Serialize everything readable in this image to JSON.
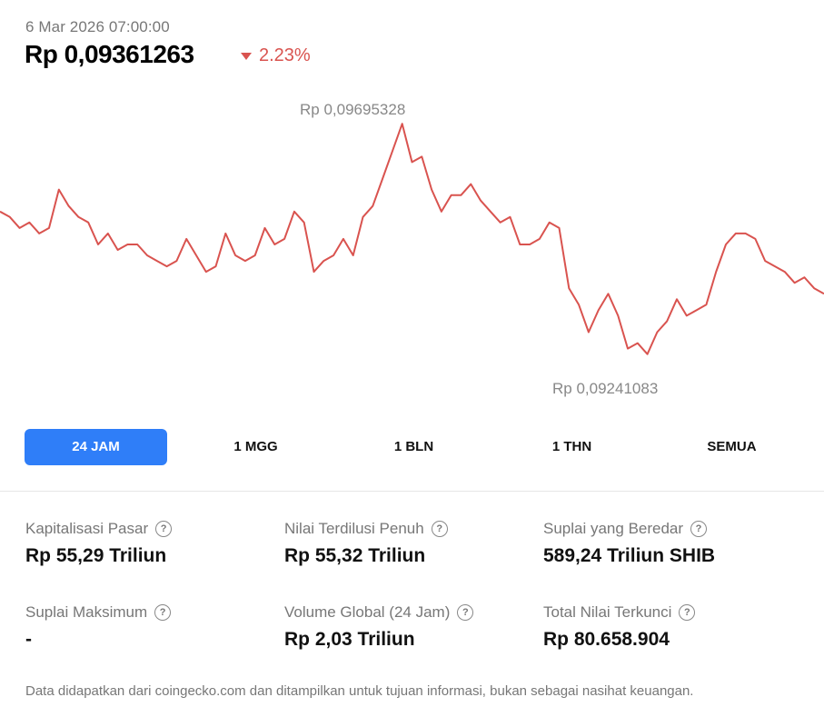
{
  "header": {
    "timestamp": "6 Mar 2026 07:00:00",
    "price": "Rp 0,09361263",
    "change": "2.23%",
    "change_color": "#d9534f"
  },
  "chart_data": {
    "type": "line",
    "series": [
      {
        "values": [
          0.0952,
          0.0951,
          0.0949,
          0.095,
          0.0948,
          0.0949,
          0.0956,
          0.0953,
          0.0951,
          0.095,
          0.0946,
          0.0948,
          0.0945,
          0.0946,
          0.0946,
          0.0944,
          0.0943,
          0.0942,
          0.0943,
          0.0947,
          0.0944,
          0.0941,
          0.0942,
          0.0948,
          0.0944,
          0.0943,
          0.0944,
          0.0949,
          0.0946,
          0.0947,
          0.0952,
          0.095,
          0.0941,
          0.0943,
          0.0944,
          0.0947,
          0.0944,
          0.0951,
          0.0953,
          0.0958,
          0.0963,
          0.0968,
          0.0961,
          0.0962,
          0.0956,
          0.0952,
          0.0955,
          0.0955,
          0.0957,
          0.0954,
          0.0952,
          0.095,
          0.0951,
          0.0946,
          0.0946,
          0.0947,
          0.095,
          0.0949,
          0.0938,
          0.0935,
          0.093,
          0.0934,
          0.0937,
          0.0933,
          0.0927,
          0.0928,
          0.0926,
          0.093,
          0.0932,
          0.0936,
          0.0933,
          0.0934,
          0.0935,
          0.0941,
          0.0946,
          0.0948,
          0.0948,
          0.0947,
          0.0943,
          0.0942,
          0.0941,
          0.0939,
          0.094,
          0.0938,
          0.0937
        ],
        "color": "#d9534f"
      }
    ],
    "annotations": {
      "max_label": "Rp 0,09695328",
      "min_label": "Rp 0,09241083"
    },
    "ylim": [
      0.0916,
      0.0974
    ]
  },
  "ranges": [
    {
      "label": "24 JAM",
      "active": true
    },
    {
      "label": "1 MGG",
      "active": false
    },
    {
      "label": "1 BLN",
      "active": false
    },
    {
      "label": "1 THN",
      "active": false
    },
    {
      "label": "SEMUA",
      "active": false
    }
  ],
  "stats": [
    {
      "label": "Kapitalisasi Pasar",
      "value": "Rp 55,29 Triliun"
    },
    {
      "label": "Nilai Terdilusi Penuh",
      "value": "Rp 55,32 Triliun"
    },
    {
      "label": "Suplai yang Beredar",
      "value": "589,24 Triliun SHIB"
    },
    {
      "label": "Suplai Maksimum",
      "value": "-"
    },
    {
      "label": "Volume Global (24 Jam)",
      "value": "Rp 2,03 Triliun"
    },
    {
      "label": "Total Nilai Terkunci",
      "value": "Rp 80.658.904"
    }
  ],
  "help_icon": "question-circle-icon",
  "help_glyph": "?",
  "footer": "Data didapatkan dari coingecko.com dan ditampilkan untuk tujuan informasi, bukan sebagai nasihat keuangan."
}
